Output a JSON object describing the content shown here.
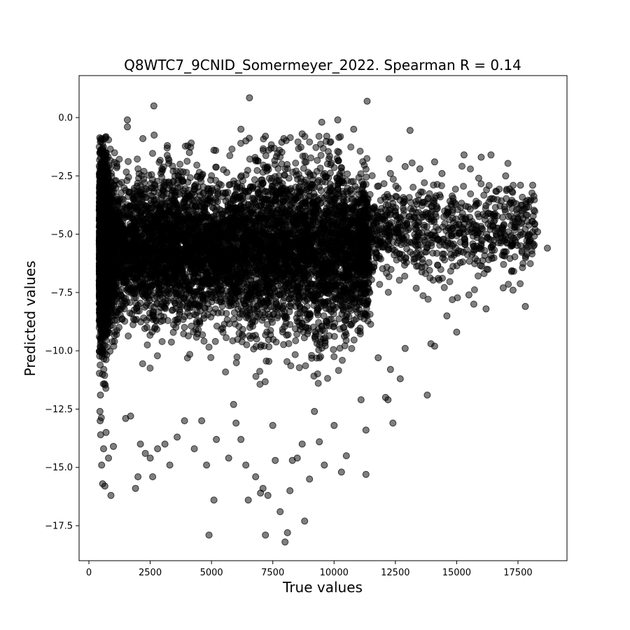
{
  "chart_data": {
    "type": "scatter",
    "title": "Q8WTC7_9CNID_Somermeyer_2022. Spearman R = 0.14",
    "xlabel": "True values",
    "ylabel": "Predicted values",
    "xlim": [
      -400,
      19500
    ],
    "ylim": [
      -19.0,
      1.8
    ],
    "xticks": [
      0,
      2500,
      5000,
      7500,
      10000,
      12500,
      15000,
      17500
    ],
    "xtick_labels": [
      "0",
      "2500",
      "5000",
      "7500",
      "10000",
      "12500",
      "15000",
      "17500"
    ],
    "yticks": [
      0.0,
      -2.5,
      -5.0,
      -7.5,
      -10.0,
      -12.5,
      -15.0,
      -17.5
    ],
    "ytick_labels": [
      "0.0",
      "−2.5",
      "−5.0",
      "−7.5",
      "−10.0",
      "−12.5",
      "−15.0",
      "−17.5"
    ],
    "grid": false,
    "marker_color": "#000000",
    "marker_alpha": 0.5,
    "points": [
      [
        6550,
        0.85
      ],
      [
        2650,
        0.5
      ],
      [
        11350,
        0.7
      ],
      [
        1570,
        -0.1
      ],
      [
        1570,
        -0.4
      ],
      [
        2660,
        -0.75
      ],
      [
        13100,
        -0.55
      ],
      [
        6200,
        -0.5
      ],
      [
        7200,
        -0.8
      ],
      [
        9500,
        -0.2
      ],
      [
        3200,
        -1.2
      ],
      [
        5100,
        -1.4
      ],
      [
        7950,
        -0.9
      ],
      [
        8700,
        -0.7
      ],
      [
        10150,
        -0.1
      ],
      [
        2200,
        -0.9
      ],
      [
        4100,
        -1.5
      ],
      [
        6400,
        -1.0
      ],
      [
        9700,
        -0.8
      ],
      [
        10800,
        -0.5
      ],
      [
        14100,
        -1.9
      ],
      [
        15300,
        -1.6
      ],
      [
        16000,
        -1.7
      ],
      [
        16400,
        -1.6
      ],
      [
        17600,
        -2.9
      ],
      [
        18100,
        -2.9
      ],
      [
        17000,
        -2.5
      ],
      [
        15900,
        -2.6
      ],
      [
        14400,
        -2.4
      ],
      [
        13500,
        -2.2
      ],
      [
        12900,
        -2.1
      ],
      [
        12300,
        -2.4
      ],
      [
        18700,
        -5.6
      ],
      [
        17900,
        -5.1
      ],
      [
        18300,
        -4.9
      ],
      [
        17800,
        -8.1
      ],
      [
        17300,
        -7.4
      ],
      [
        16900,
        -7.3
      ],
      [
        16200,
        -8.2
      ],
      [
        15700,
        -8.0
      ],
      [
        15500,
        -7.6
      ],
      [
        15000,
        -9.2
      ],
      [
        14600,
        -8.5
      ],
      [
        14100,
        -9.8
      ],
      [
        13950,
        -9.7
      ],
      [
        13800,
        -11.9
      ],
      [
        12900,
        -9.9
      ],
      [
        12700,
        -11.2
      ],
      [
        12300,
        -10.8
      ],
      [
        12200,
        -12.1
      ],
      [
        12400,
        -13.1
      ],
      [
        12100,
        -12.0
      ],
      [
        11800,
        -10.3
      ],
      [
        11300,
        -13.4
      ],
      [
        11300,
        -15.3
      ],
      [
        11100,
        -12.1
      ],
      [
        10500,
        -14.5
      ],
      [
        10300,
        -15.2
      ],
      [
        10000,
        -13.2
      ],
      [
        9600,
        -14.9
      ],
      [
        9400,
        -13.9
      ],
      [
        9200,
        -12.6
      ],
      [
        9000,
        -15.5
      ],
      [
        8800,
        -17.3
      ],
      [
        8700,
        -14.0
      ],
      [
        8500,
        -14.6
      ],
      [
        8300,
        -14.7
      ],
      [
        8200,
        -16.0
      ],
      [
        8100,
        -17.8
      ],
      [
        8000,
        -18.2
      ],
      [
        7800,
        -16.9
      ],
      [
        7600,
        -14.7
      ],
      [
        7500,
        -13.2
      ],
      [
        7300,
        -16.2
      ],
      [
        7200,
        -17.9
      ],
      [
        7100,
        -15.9
      ],
      [
        7000,
        -16.1
      ],
      [
        6800,
        -15.4
      ],
      [
        6500,
        -16.4
      ],
      [
        6400,
        -14.9
      ],
      [
        6200,
        -13.8
      ],
      [
        6000,
        -13.1
      ],
      [
        5900,
        -12.3
      ],
      [
        5700,
        -14.6
      ],
      [
        5200,
        -13.8
      ],
      [
        5100,
        -16.4
      ],
      [
        4900,
        -17.9
      ],
      [
        4800,
        -14.9
      ],
      [
        4600,
        -13.0
      ],
      [
        4300,
        -14.2
      ],
      [
        3900,
        -13.0
      ],
      [
        3600,
        -13.7
      ],
      [
        3300,
        -14.9
      ],
      [
        3100,
        -14.0
      ],
      [
        2800,
        -14.2
      ],
      [
        2600,
        -15.4
      ],
      [
        2500,
        -14.6
      ],
      [
        2300,
        -14.4
      ],
      [
        2100,
        -14.0
      ],
      [
        2000,
        -15.4
      ],
      [
        1900,
        -15.9
      ],
      [
        1700,
        -12.8
      ],
      [
        1500,
        -12.9
      ],
      [
        1000,
        -14.1
      ],
      [
        900,
        -16.2
      ],
      [
        800,
        -14.6
      ],
      [
        700,
        -13.5
      ],
      [
        650,
        -15.8
      ],
      [
        560,
        -15.7
      ],
      [
        520,
        -14.9
      ],
      [
        600,
        -14.2
      ],
      [
        480,
        -13.6
      ],
      [
        460,
        -13.0
      ],
      [
        450,
        -12.6
      ],
      [
        470,
        -11.9
      ]
    ]
  }
}
